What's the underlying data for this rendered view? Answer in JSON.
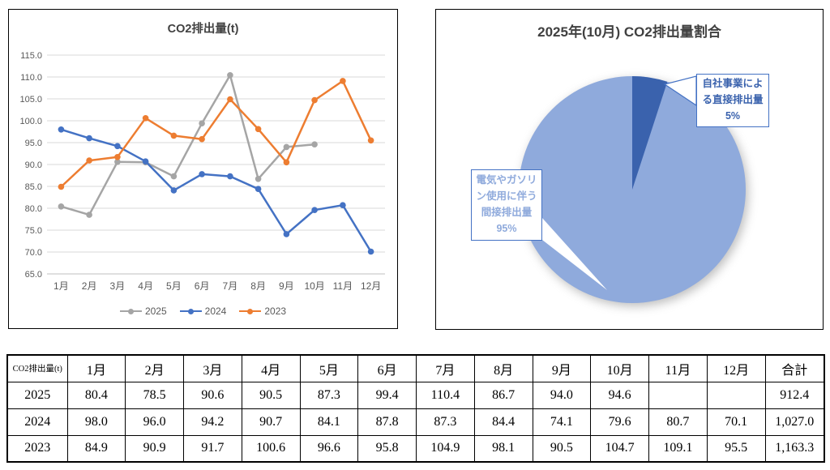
{
  "line_chart": {
    "title": "CO2排出量(t)"
  },
  "pie_chart": {
    "title": "2025年(10月) CO2排出量割合",
    "callout_direct": "自社事業によ\nる直接排出量\n5%",
    "callout_indirect": "電気やガソリ\nン使用に伴う\n間接排出量\n95%"
  },
  "chart_data": [
    {
      "type": "line",
      "title": "CO2排出量(t)",
      "categories": [
        "1月",
        "2月",
        "3月",
        "4月",
        "5月",
        "6月",
        "7月",
        "8月",
        "9月",
        "10月",
        "11月",
        "12月"
      ],
      "series": [
        {
          "name": "2025",
          "color": "#A5A5A5",
          "values": [
            80.4,
            78.5,
            90.6,
            90.5,
            87.3,
            99.4,
            110.4,
            86.7,
            94.0,
            94.6,
            null,
            null
          ]
        },
        {
          "name": "2024",
          "color": "#4472C4",
          "values": [
            98.0,
            96.0,
            94.2,
            90.7,
            84.1,
            87.8,
            87.3,
            84.4,
            74.1,
            79.6,
            80.7,
            70.1
          ]
        },
        {
          "name": "2023",
          "color": "#ED7D31",
          "values": [
            84.9,
            90.9,
            91.7,
            100.6,
            96.6,
            95.8,
            104.9,
            98.1,
            90.5,
            104.7,
            109.1,
            95.5
          ]
        }
      ],
      "ylim": [
        65,
        115
      ],
      "ytick_step": 5,
      "grid": true,
      "legend_position": "bottom"
    },
    {
      "type": "pie",
      "title": "2025年(10月) CO2排出量割合",
      "labels": [
        "自社事業による直接排出量",
        "電気やガソリン使用に伴う間接排出量"
      ],
      "values": [
        5,
        95
      ],
      "colors": [
        "#3A62AD",
        "#8FAADC"
      ],
      "start_angle": 0,
      "labels_as_callouts": true
    }
  ],
  "table": {
    "corner_label": "CO2排出量(t)",
    "columns": [
      "1月",
      "2月",
      "3月",
      "4月",
      "5月",
      "6月",
      "7月",
      "8月",
      "9月",
      "10月",
      "11月",
      "12月",
      "合計"
    ],
    "rows": [
      {
        "label": "2025",
        "cells": [
          "80.4",
          "78.5",
          "90.6",
          "90.5",
          "87.3",
          "99.4",
          "110.4",
          "86.7",
          "94.0",
          "94.6",
          "",
          "",
          "912.4"
        ]
      },
      {
        "label": "2024",
        "cells": [
          "98.0",
          "96.0",
          "94.2",
          "90.7",
          "84.1",
          "87.8",
          "87.3",
          "84.4",
          "74.1",
          "79.6",
          "80.7",
          "70.1",
          "1,027.0"
        ]
      },
      {
        "label": "2023",
        "cells": [
          "84.9",
          "90.9",
          "91.7",
          "100.6",
          "96.6",
          "95.8",
          "104.9",
          "98.1",
          "90.5",
          "104.7",
          "109.1",
          "95.5",
          "1,163.3"
        ]
      }
    ]
  },
  "colors": {
    "grid": "#D9D9D9",
    "axis_line": "#BFBFBF",
    "axis_text": "#595959",
    "title_text": "#404040",
    "callout_border": "#4472C4",
    "table_border": "#000000"
  }
}
